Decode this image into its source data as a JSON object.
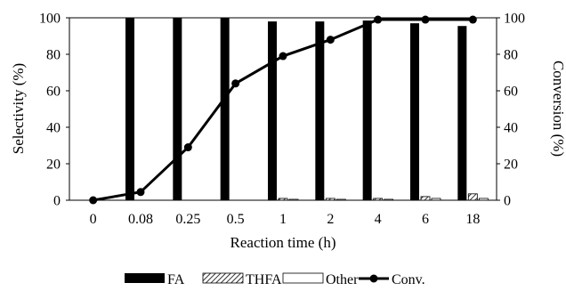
{
  "chart_data": {
    "type": "bar",
    "title": "",
    "xlabel": "Reaction time (h)",
    "ylabel_left": "Selectivity  (%)",
    "ylabel_right": "Conversion  (%)",
    "ylim_left": [
      0,
      100
    ],
    "ylim_right": [
      0,
      100
    ],
    "yticks": [
      "0",
      "20",
      "40",
      "60",
      "80",
      "100"
    ],
    "categories": [
      "0",
      "0.08",
      "0.25",
      "0.5",
      "1",
      "2",
      "4",
      "6",
      "18"
    ],
    "series": [
      {
        "name": "FA",
        "kind": "bar",
        "axis": "left",
        "pattern": "solid",
        "values": [
          0,
          100,
          100,
          100,
          98,
          98,
          98.5,
          97,
          95.5
        ]
      },
      {
        "name": "THFA",
        "kind": "bar",
        "axis": "left",
        "pattern": "hatch",
        "values": [
          0,
          0,
          0,
          0,
          1,
          1,
          1,
          2,
          3.5
        ]
      },
      {
        "name": "Other",
        "kind": "bar",
        "axis": "left",
        "pattern": "open",
        "values": [
          0,
          0,
          0,
          0,
          0.5,
          0.5,
          0.5,
          1,
          1
        ]
      },
      {
        "name": "Conv.",
        "kind": "line",
        "axis": "right",
        "marker": "circle",
        "values": [
          0,
          4.5,
          29,
          64,
          79,
          88,
          99,
          99,
          99
        ]
      }
    ],
    "grid": false,
    "legend_position": "bottom",
    "colors": {
      "solid": "#000000",
      "outline": "#000000",
      "background": "#ffffff"
    }
  }
}
